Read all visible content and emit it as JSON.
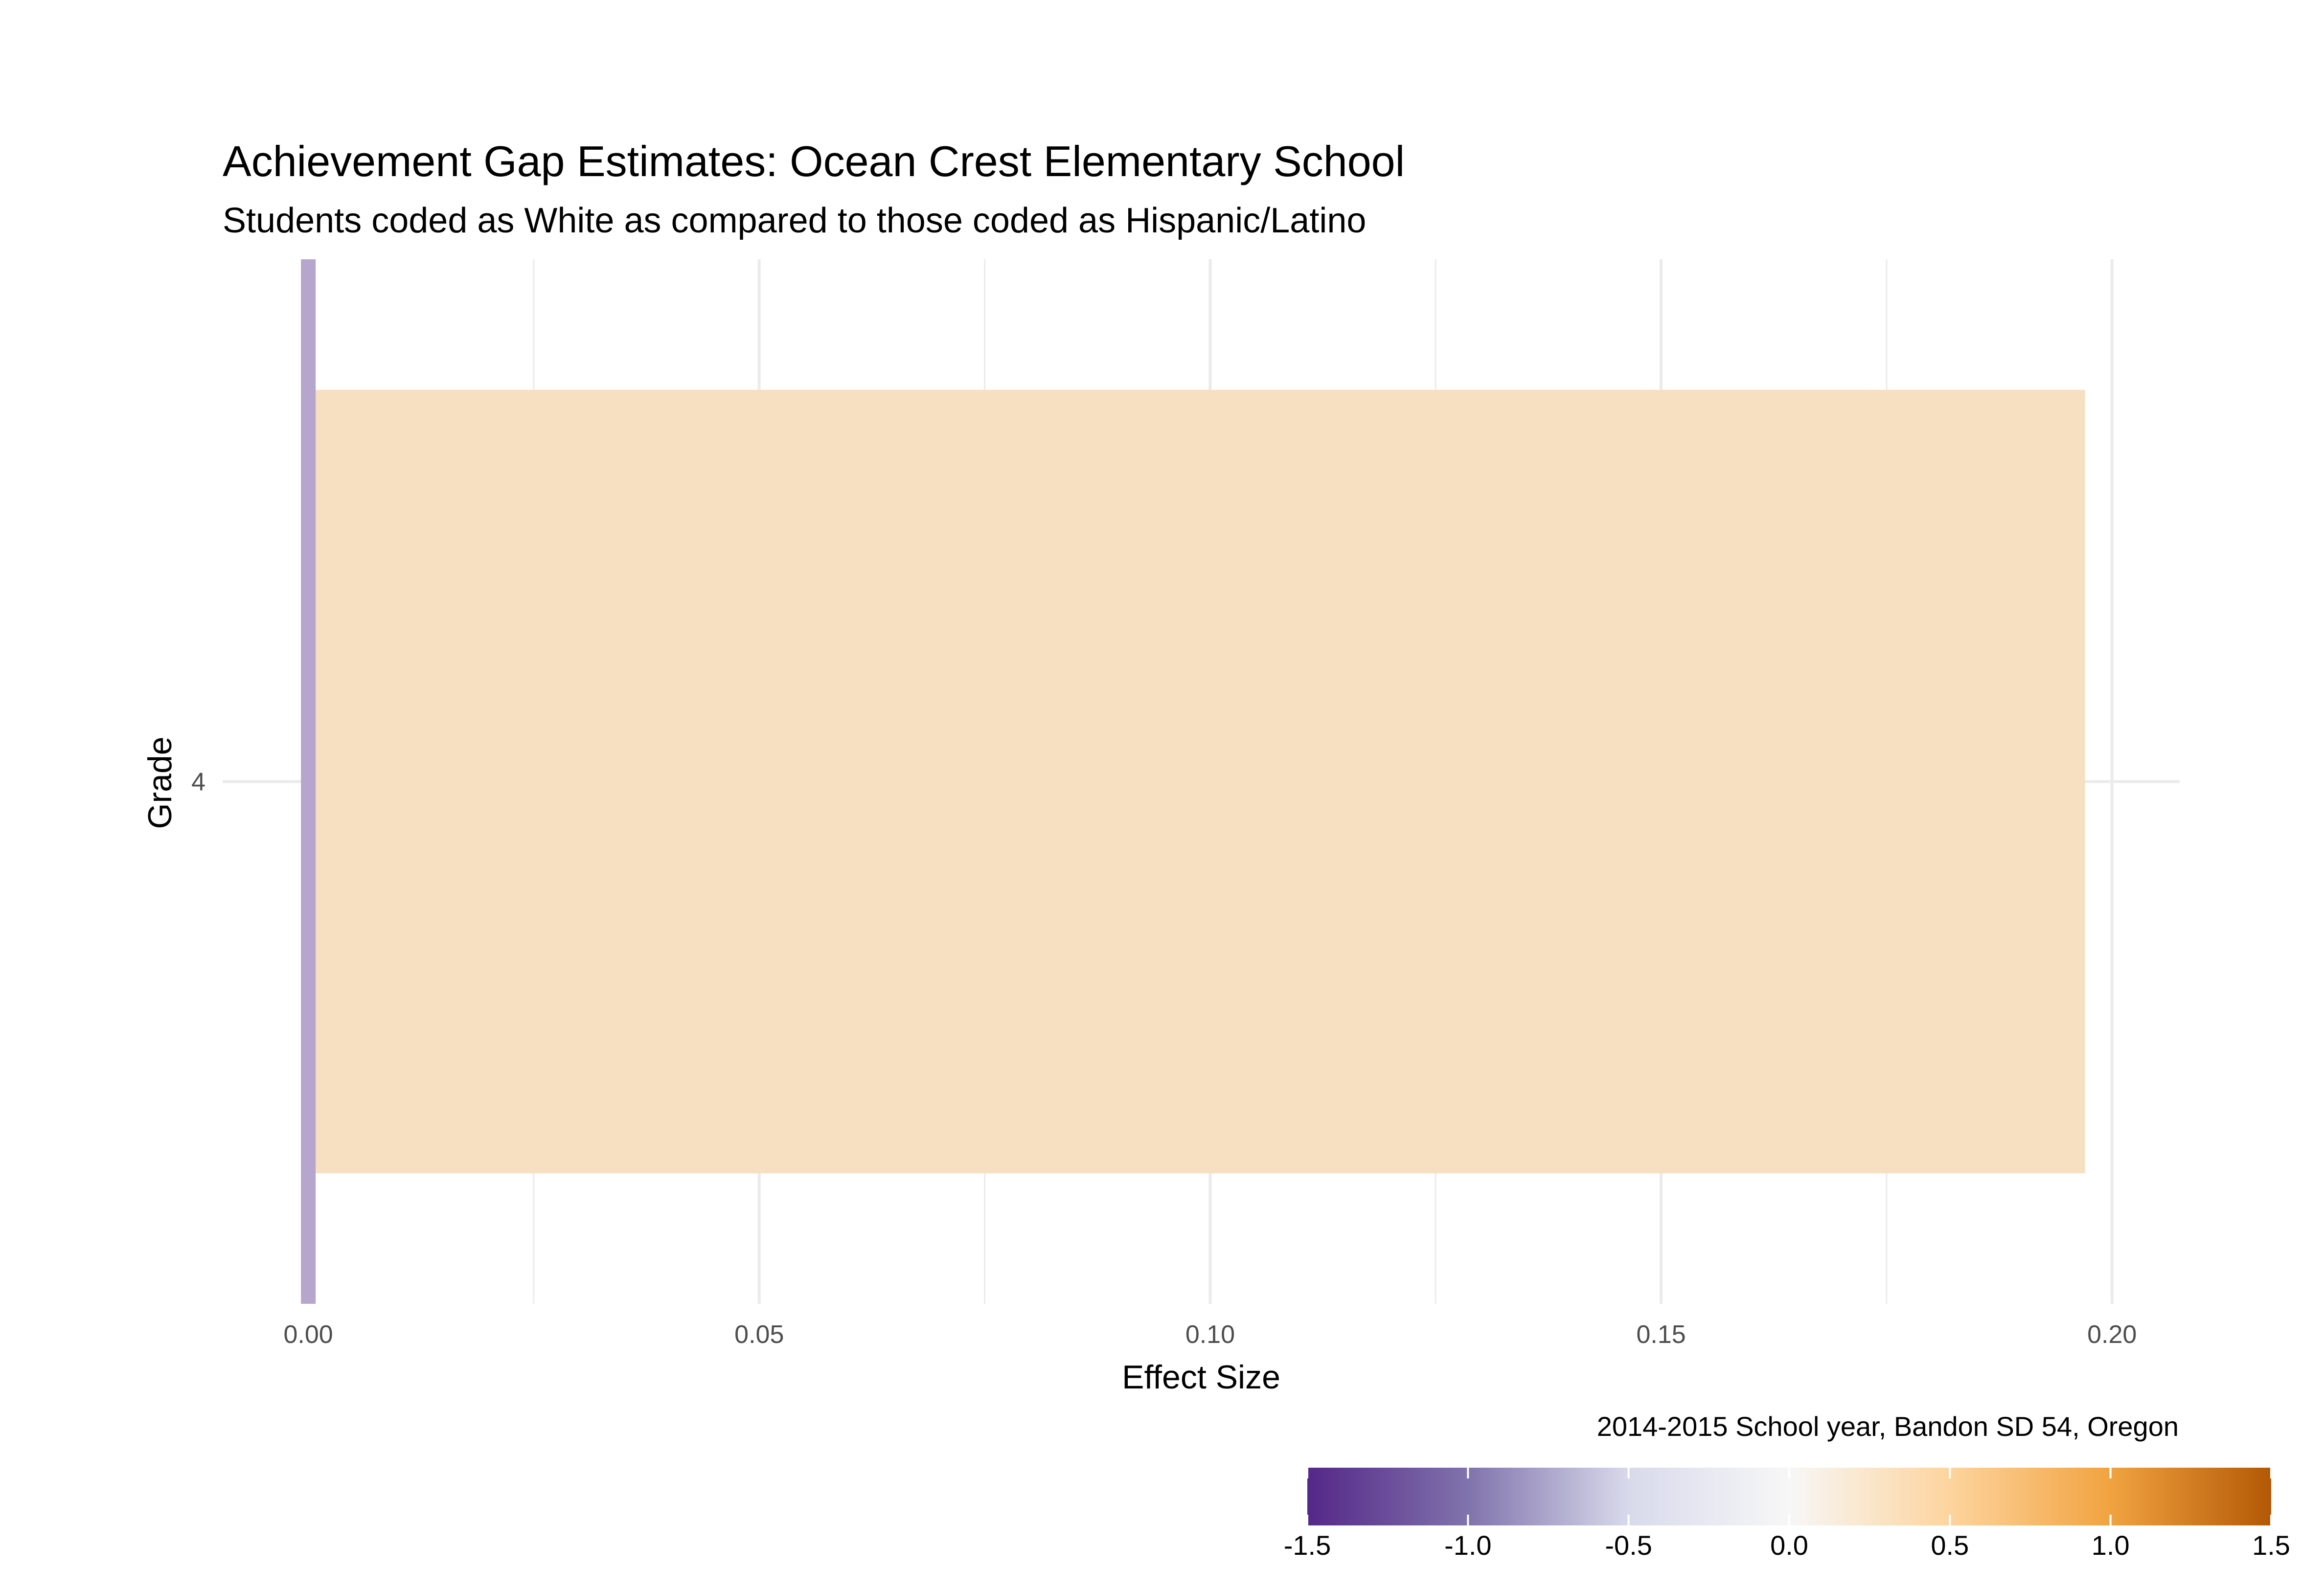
{
  "chart_data": {
    "type": "bar",
    "orientation": "horizontal",
    "title": "Achievement Gap Estimates: Ocean Crest Elementary School",
    "subtitle": "Students coded as White as compared to those coded as Hispanic/Latino",
    "xlabel": "Effect Size",
    "ylabel": "Grade",
    "caption": "2014-2015 School year, Bandon SD 54, Oregon",
    "categories": [
      "4"
    ],
    "values": [
      0.197
    ],
    "xlim": [
      -0.0095,
      0.2075
    ],
    "x_ticks": [
      0.0,
      0.05,
      0.1,
      0.15,
      0.2
    ],
    "x_tick_labels": [
      "0.00",
      "0.05",
      "0.10",
      "0.15",
      "0.20"
    ],
    "grid": true,
    "reference_line": {
      "x": 0.0,
      "color": "#b6a5cc"
    },
    "bar_color": "#f7dfc1",
    "legend": {
      "type": "colorbar",
      "placement": "bottom-right",
      "range": [
        -1.5,
        1.5
      ],
      "ticks": [
        -1.5,
        -1.0,
        -0.5,
        0.0,
        0.5,
        1.0,
        1.5
      ],
      "tick_labels": [
        "-1.5",
        "-1.0",
        "-0.5",
        "0.0",
        "0.5",
        "1.0",
        "1.5"
      ],
      "colors": [
        "#542788",
        "#8073ac",
        "#d8daeb",
        "#f7f7f7",
        "#fdd49e",
        "#f1a340",
        "#b35806"
      ]
    }
  }
}
